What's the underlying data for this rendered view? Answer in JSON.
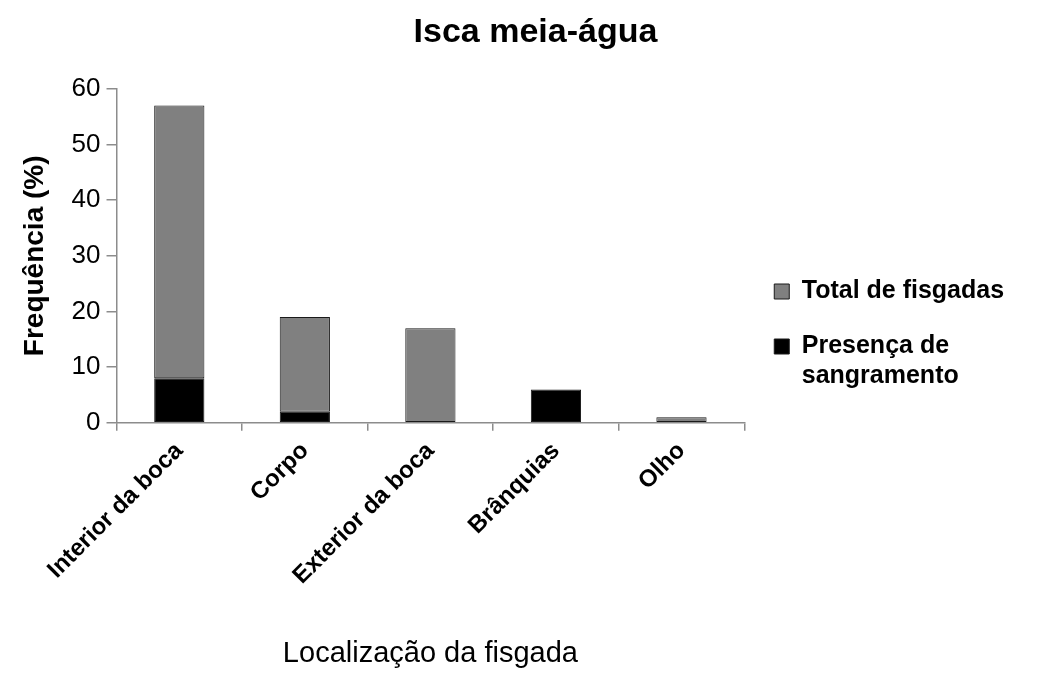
{
  "chart_data": {
    "type": "bar",
    "title": "Isca meia-água",
    "xlabel": "Localização da fisgada",
    "ylabel": "Frequência (%)",
    "categories": [
      "Interior da boca",
      "Corpo",
      "Exterior da boca",
      "Brânquias",
      "Olho"
    ],
    "series": [
      {
        "name": "Presença de sangramento",
        "color": "#000000",
        "values": [
          8,
          2,
          0,
          6,
          0
        ]
      },
      {
        "name": "Total de fisgadas",
        "color": "#808080",
        "values": [
          49,
          17,
          17,
          0,
          1
        ]
      }
    ],
    "stacked": true,
    "ylim": [
      0,
      60
    ],
    "yticks": [
      0,
      10,
      20,
      30,
      40,
      50,
      60
    ],
    "grid": false,
    "legend": "right"
  }
}
